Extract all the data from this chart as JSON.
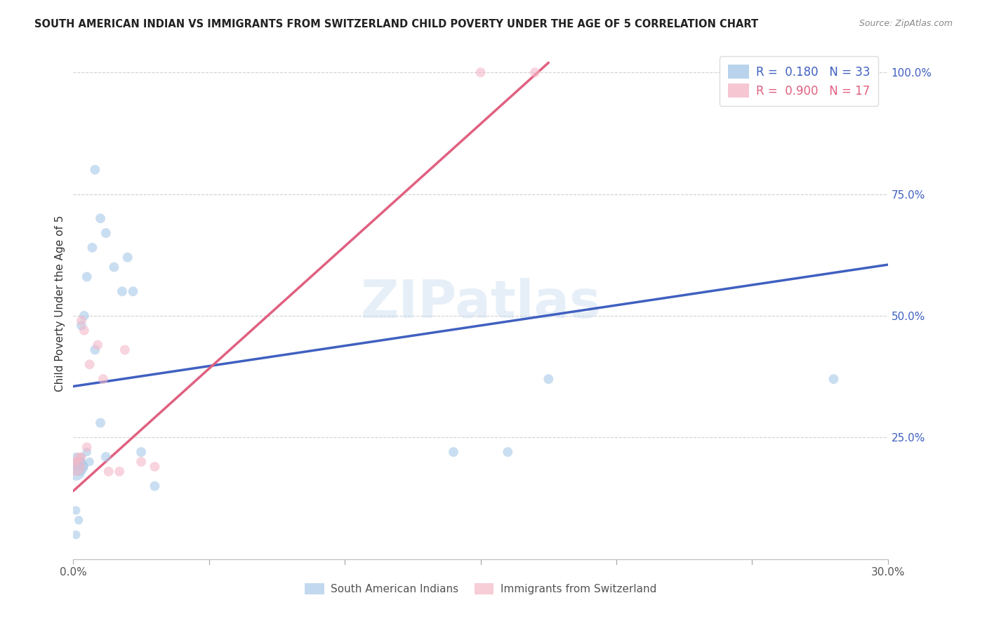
{
  "title": "SOUTH AMERICAN INDIAN VS IMMIGRANTS FROM SWITZERLAND CHILD POVERTY UNDER THE AGE OF 5 CORRELATION CHART",
  "source": "Source: ZipAtlas.com",
  "ylabel": "Child Poverty Under the Age of 5",
  "legend_label1": "South American Indians",
  "legend_label2": "Immigrants from Switzerland",
  "legend_r1": "R =",
  "legend_v1": " 0.180",
  "legend_n1_label": "N =",
  "legend_n1_val": " 33",
  "legend_r2": "R =",
  "legend_v2": " 0.900",
  "legend_n2_label": "N =",
  "legend_n2_val": " 17",
  "watermark": "ZIPatlas",
  "blue_color": "#a8c8e8",
  "pink_color": "#f4b8c8",
  "blue_line_color": "#4060c0",
  "pink_line_color": "#e06080",
  "xmin": 0.0,
  "xmax": 0.3,
  "ymin": 0.0,
  "ymax": 1.05,
  "yticks": [
    0.0,
    0.25,
    0.5,
    0.75,
    1.0
  ],
  "ytick_labels": [
    "",
    "25.0%",
    "50.0%",
    "75.0%",
    "100.0%"
  ],
  "xticks": [
    0.0,
    0.05,
    0.1,
    0.15,
    0.2,
    0.25,
    0.3
  ],
  "xtick_labels": [
    "0.0%",
    "",
    "",
    "",
    "",
    "",
    "30.0%"
  ],
  "blue_scatter_x": [
    0.001,
    0.002,
    0.001,
    0.003,
    0.004,
    0.003,
    0.005,
    0.006,
    0.003,
    0.004,
    0.008,
    0.01,
    0.012,
    0.005,
    0.007,
    0.015,
    0.018,
    0.02,
    0.022,
    0.025,
    0.008,
    0.01,
    0.012,
    0.03,
    0.14,
    0.16,
    0.175,
    0.002,
    0.001,
    0.002,
    0.001,
    0.001,
    0.28
  ],
  "blue_scatter_y": [
    0.19,
    0.2,
    0.21,
    0.2,
    0.19,
    0.21,
    0.22,
    0.2,
    0.48,
    0.5,
    0.43,
    0.28,
    0.21,
    0.58,
    0.64,
    0.6,
    0.55,
    0.62,
    0.55,
    0.22,
    0.8,
    0.7,
    0.67,
    0.15,
    0.22,
    0.22,
    0.37,
    0.08,
    0.05,
    0.19,
    0.18,
    0.1,
    0.37
  ],
  "blue_scatter_sizes": [
    80,
    80,
    80,
    80,
    80,
    80,
    80,
    80,
    100,
    100,
    100,
    100,
    100,
    100,
    100,
    100,
    100,
    100,
    100,
    100,
    100,
    100,
    100,
    100,
    100,
    100,
    100,
    80,
    80,
    350,
    350,
    80,
    100
  ],
  "pink_scatter_x": [
    0.001,
    0.002,
    0.001,
    0.003,
    0.004,
    0.003,
    0.005,
    0.006,
    0.009,
    0.011,
    0.013,
    0.017,
    0.019,
    0.025,
    0.03,
    0.15,
    0.17
  ],
  "pink_scatter_y": [
    0.19,
    0.21,
    0.2,
    0.21,
    0.47,
    0.49,
    0.23,
    0.4,
    0.44,
    0.37,
    0.18,
    0.18,
    0.43,
    0.2,
    0.19,
    1.0,
    1.0
  ],
  "pink_scatter_sizes": [
    350,
    80,
    80,
    80,
    100,
    100,
    100,
    100,
    100,
    100,
    100,
    100,
    100,
    100,
    100,
    100,
    100
  ],
  "blue_line_x": [
    0.0,
    0.3
  ],
  "blue_line_y": [
    0.355,
    0.605
  ],
  "pink_line_x": [
    0.0,
    0.175
  ],
  "pink_line_y": [
    0.14,
    1.02
  ]
}
